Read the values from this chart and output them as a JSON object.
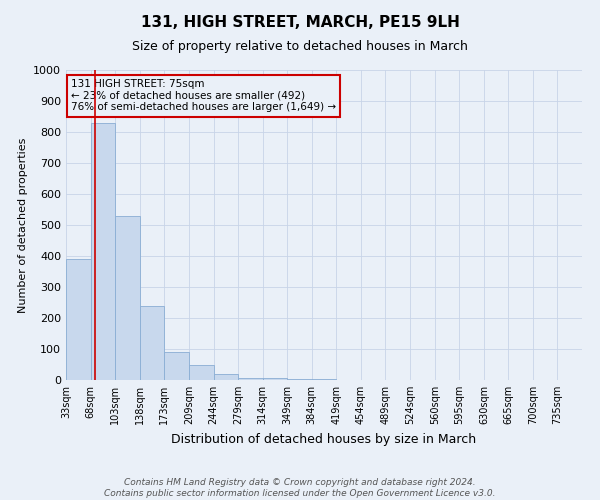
{
  "title": "131, HIGH STREET, MARCH, PE15 9LH",
  "subtitle": "Size of property relative to detached houses in March",
  "xlabel": "Distribution of detached houses by size in March",
  "ylabel": "Number of detached properties",
  "footer_line1": "Contains HM Land Registry data © Crown copyright and database right 2024.",
  "footer_line2": "Contains public sector information licensed under the Open Government Licence v3.0.",
  "annotation_line1": "131 HIGH STREET: 75sqm",
  "annotation_line2": "← 23% of detached houses are smaller (492)",
  "annotation_line3": "76% of semi-detached houses are larger (1,649) →",
  "bar_color": "#c8d8ed",
  "bar_edge_color": "#8aadd4",
  "red_line_color": "#cc0000",
  "annotation_box_color": "#cc0000",
  "grid_color": "#c8d4e8",
  "background_color": "#eaf0f8",
  "categories": [
    "33sqm",
    "68sqm",
    "103sqm",
    "138sqm",
    "173sqm",
    "209sqm",
    "244sqm",
    "279sqm",
    "314sqm",
    "349sqm",
    "384sqm",
    "419sqm",
    "454sqm",
    "489sqm",
    "524sqm",
    "560sqm",
    "595sqm",
    "630sqm",
    "665sqm",
    "700sqm",
    "735sqm"
  ],
  "values": [
    390,
    830,
    530,
    240,
    90,
    50,
    18,
    8,
    5,
    3,
    2,
    1,
    0,
    0,
    0,
    0,
    0,
    0,
    0,
    0,
    0
  ],
  "bin_edges": [
    33,
    68,
    103,
    138,
    173,
    209,
    244,
    279,
    314,
    349,
    384,
    419,
    454,
    489,
    524,
    560,
    595,
    630,
    665,
    700,
    735
  ],
  "bin_width": 35,
  "property_size": 75,
  "ylim": [
    0,
    1000
  ],
  "yticks": [
    0,
    100,
    200,
    300,
    400,
    500,
    600,
    700,
    800,
    900,
    1000
  ],
  "title_fontsize": 11,
  "subtitle_fontsize": 9,
  "xlabel_fontsize": 9,
  "ylabel_fontsize": 8,
  "tick_fontsize": 8,
  "footer_fontsize": 6.5
}
